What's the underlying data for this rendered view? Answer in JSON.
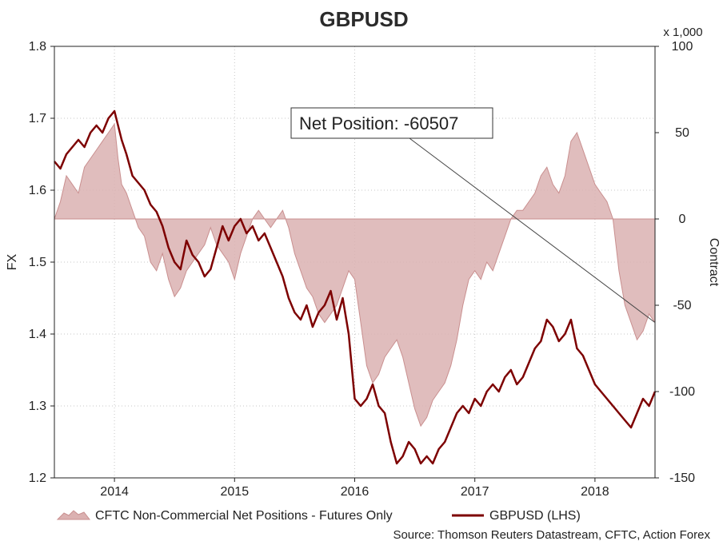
{
  "chart_data": {
    "type": "line",
    "title": "GBPUSD",
    "left_axis": {
      "label": "FX",
      "range": [
        1.2,
        1.8
      ],
      "ticks": [
        "1.2",
        "1.3",
        "1.4",
        "1.5",
        "1.6",
        "1.7",
        "1.8"
      ]
    },
    "right_axis": {
      "label": "Contract",
      "multiplier_label": "x 1,000",
      "range": [
        -150,
        100
      ],
      "ticks": [
        "-150",
        "-100",
        "-50",
        "0",
        "50",
        "100"
      ]
    },
    "x_axis": {
      "range": [
        2013.5,
        2018.5
      ],
      "tick_labels": [
        "2014",
        "2015",
        "2016",
        "2017",
        "2018"
      ]
    },
    "grid": true,
    "legend_position": "bottom",
    "annotation": {
      "text": "Net Position: -60507"
    },
    "source": "Source: Thomson Reuters Datastream, CFTC, Action Forex",
    "series": [
      {
        "name": "CFTC Non-Commercial Net Positions - Futures Only",
        "axis": "right",
        "kind": "area",
        "color": "#c98f8f",
        "x": [
          2013.5,
          2013.55,
          2013.6,
          2013.65,
          2013.7,
          2013.75,
          2013.8,
          2013.85,
          2013.9,
          2013.95,
          2014.0,
          2014.03,
          2014.06,
          2014.1,
          2014.15,
          2014.2,
          2014.25,
          2014.3,
          2014.35,
          2014.4,
          2014.45,
          2014.5,
          2014.55,
          2014.6,
          2014.65,
          2014.7,
          2014.75,
          2014.8,
          2014.85,
          2014.9,
          2014.95,
          2015.0,
          2015.05,
          2015.1,
          2015.15,
          2015.2,
          2015.25,
          2015.3,
          2015.35,
          2015.4,
          2015.45,
          2015.5,
          2015.55,
          2015.6,
          2015.65,
          2015.7,
          2015.75,
          2015.8,
          2015.85,
          2015.9,
          2015.95,
          2016.0,
          2016.05,
          2016.1,
          2016.15,
          2016.2,
          2016.25,
          2016.3,
          2016.35,
          2016.4,
          2016.45,
          2016.5,
          2016.55,
          2016.6,
          2016.65,
          2016.7,
          2016.75,
          2016.8,
          2016.85,
          2016.9,
          2016.95,
          2017.0,
          2017.05,
          2017.1,
          2017.15,
          2017.2,
          2017.25,
          2017.3,
          2017.35,
          2017.4,
          2017.45,
          2017.5,
          2017.55,
          2017.6,
          2017.65,
          2017.7,
          2017.75,
          2017.8,
          2017.85,
          2017.9,
          2017.95,
          2018.0,
          2018.05,
          2018.1,
          2018.15,
          2018.2,
          2018.25,
          2018.3,
          2018.35,
          2018.4,
          2018.45,
          2018.5
        ],
        "values": [
          0,
          10,
          25,
          20,
          15,
          30,
          35,
          40,
          45,
          50,
          55,
          35,
          20,
          15,
          5,
          -5,
          -10,
          -25,
          -30,
          -20,
          -35,
          -45,
          -40,
          -30,
          -25,
          -20,
          -15,
          -5,
          -15,
          -20,
          -25,
          -35,
          -20,
          -10,
          0,
          5,
          0,
          -5,
          0,
          5,
          -5,
          -20,
          -30,
          -40,
          -45,
          -55,
          -60,
          -55,
          -50,
          -40,
          -30,
          -35,
          -60,
          -85,
          -95,
          -90,
          -80,
          -75,
          -70,
          -80,
          -95,
          -110,
          -120,
          -115,
          -105,
          -100,
          -95,
          -85,
          -70,
          -50,
          -35,
          -30,
          -35,
          -25,
          -30,
          -20,
          -10,
          0,
          5,
          5,
          10,
          15,
          25,
          30,
          20,
          15,
          25,
          45,
          50,
          40,
          30,
          20,
          15,
          10,
          0,
          -30,
          -50,
          -60,
          -70,
          -65,
          -55,
          -60
        ]
      },
      {
        "name": "GBPUSD (LHS)",
        "axis": "left",
        "kind": "line",
        "color": "#7d0000",
        "x": [
          2013.5,
          2013.55,
          2013.6,
          2013.65,
          2013.7,
          2013.75,
          2013.8,
          2013.85,
          2013.9,
          2013.95,
          2014.0,
          2014.03,
          2014.06,
          2014.1,
          2014.15,
          2014.2,
          2014.25,
          2014.3,
          2014.35,
          2014.4,
          2014.45,
          2014.5,
          2014.55,
          2014.6,
          2014.65,
          2014.7,
          2014.75,
          2014.8,
          2014.85,
          2014.9,
          2014.95,
          2015.0,
          2015.05,
          2015.1,
          2015.15,
          2015.2,
          2015.25,
          2015.3,
          2015.35,
          2015.4,
          2015.45,
          2015.5,
          2015.55,
          2015.6,
          2015.65,
          2015.7,
          2015.75,
          2015.8,
          2015.85,
          2015.9,
          2015.95,
          2016.0,
          2016.05,
          2016.1,
          2016.15,
          2016.2,
          2016.25,
          2016.3,
          2016.35,
          2016.4,
          2016.45,
          2016.5,
          2016.55,
          2016.6,
          2016.65,
          2016.7,
          2016.75,
          2016.8,
          2016.85,
          2016.9,
          2016.95,
          2017.0,
          2017.05,
          2017.1,
          2017.15,
          2017.2,
          2017.25,
          2017.3,
          2017.35,
          2017.4,
          2017.45,
          2017.5,
          2017.55,
          2017.6,
          2017.65,
          2017.7,
          2017.75,
          2017.8,
          2017.85,
          2017.9,
          2017.95,
          2018.0,
          2018.05,
          2018.1,
          2018.15,
          2018.2,
          2018.25,
          2018.3,
          2018.35,
          2018.4,
          2018.45,
          2018.5
        ],
        "values": [
          1.64,
          1.63,
          1.65,
          1.66,
          1.67,
          1.66,
          1.68,
          1.69,
          1.68,
          1.7,
          1.71,
          1.69,
          1.67,
          1.65,
          1.62,
          1.61,
          1.6,
          1.58,
          1.57,
          1.55,
          1.52,
          1.5,
          1.49,
          1.53,
          1.51,
          1.5,
          1.48,
          1.49,
          1.52,
          1.55,
          1.53,
          1.55,
          1.56,
          1.54,
          1.55,
          1.53,
          1.54,
          1.52,
          1.5,
          1.48,
          1.45,
          1.43,
          1.42,
          1.44,
          1.41,
          1.43,
          1.44,
          1.46,
          1.42,
          1.45,
          1.4,
          1.31,
          1.3,
          1.31,
          1.33,
          1.3,
          1.29,
          1.25,
          1.22,
          1.23,
          1.25,
          1.24,
          1.22,
          1.23,
          1.22,
          1.24,
          1.25,
          1.27,
          1.29,
          1.3,
          1.29,
          1.31,
          1.3,
          1.32,
          1.33,
          1.32,
          1.34,
          1.35,
          1.33,
          1.34,
          1.36,
          1.38,
          1.39,
          1.42,
          1.41,
          1.39,
          1.4,
          1.42,
          1.38,
          1.37,
          1.35,
          1.33,
          1.32,
          1.31,
          1.3,
          1.29,
          1.28,
          1.27,
          1.29,
          1.31,
          1.3,
          1.32
        ]
      }
    ]
  }
}
